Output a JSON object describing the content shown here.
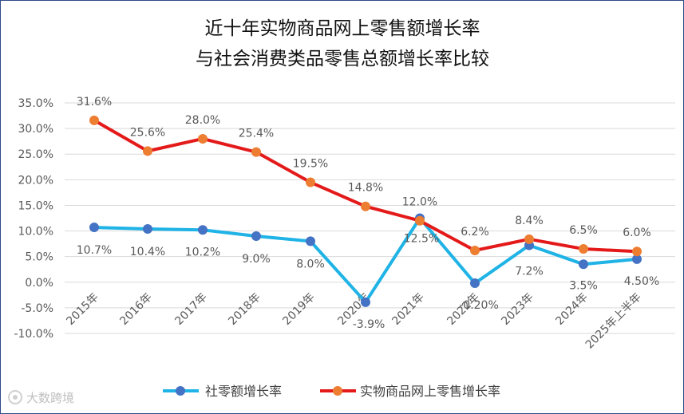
{
  "chart_data": {
    "type": "line",
    "title": [
      "近十年实物商品网上零售额增长率",
      "与社会消费类品零售总额增长率比较"
    ],
    "categories": [
      "2015年",
      "2016年",
      "2017年",
      "2018年",
      "2019年",
      "2020年",
      "2021年",
      "2022年",
      "2023年",
      "2024年",
      "2025年上半年"
    ],
    "y_ticks": [
      "35.0%",
      "30.0%",
      "25.0%",
      "20.0%",
      "15.0%",
      "10.0%",
      "5.0%",
      "0.0%",
      "-5.0%",
      "-10.0%"
    ],
    "ylim": [
      -10,
      35
    ],
    "grid": true,
    "legend_position": "bottom",
    "series": [
      {
        "name": "社零额增长率",
        "color": "#1fb3e6",
        "marker_color": "#4472c4",
        "values": [
          10.7,
          10.4,
          10.2,
          9.0,
          8.0,
          -3.9,
          12.5,
          -0.2,
          7.2,
          3.5,
          4.5
        ],
        "labels": [
          "10.7%",
          "10.4%",
          "10.2%",
          "9.0%",
          "8.0%",
          "-3.9%",
          "12.5%",
          "-0.20%",
          "7.2%",
          "3.5%",
          "4.50%"
        ]
      },
      {
        "name": "实物商品网上零售增长率",
        "color": "#e41a1a",
        "marker_color": "#ed7d31",
        "values": [
          31.6,
          25.6,
          28.0,
          25.4,
          19.5,
          14.8,
          12.0,
          6.2,
          8.4,
          6.5,
          6.0
        ],
        "labels": [
          "31.6%",
          "25.6%",
          "28.0%",
          "25.4%",
          "19.5%",
          "14.8%",
          "12.0%",
          "6.2%",
          "8.4%",
          "6.5%",
          "6.0%"
        ]
      }
    ]
  },
  "watermark": {
    "text": "大数跨境",
    "icon": "logo-icon"
  }
}
